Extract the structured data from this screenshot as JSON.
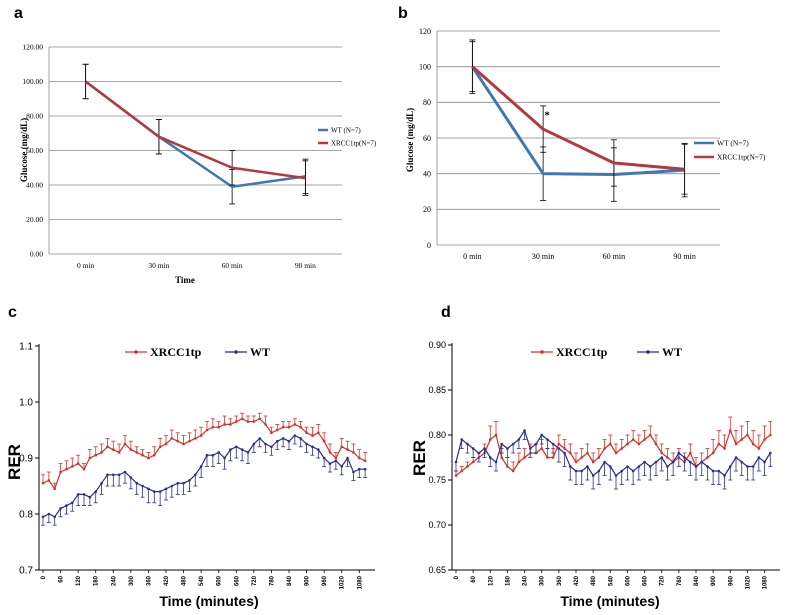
{
  "chart_data": [
    {
      "panel": "a",
      "type": "line",
      "categories": [
        "0 min",
        "30 min",
        "60 min",
        "90 min"
      ],
      "series": [
        {
          "name": "WT (N=7)",
          "color": "#3d78b5",
          "values": [
            100,
            68,
            39,
            45
          ],
          "errors": [
            10,
            10,
            10,
            10
          ]
        },
        {
          "name": "XRCC1tp(N=7)",
          "color": "#b23a3e",
          "values": [
            100,
            68,
            50,
            44
          ],
          "errors": [
            10,
            10,
            10,
            10
          ]
        }
      ],
      "xlabel": "Time",
      "ylabel": "Glucose (mg/dL)",
      "ylim": [
        0,
        120
      ],
      "yticks": [
        "0.00",
        "20.00",
        "40.00",
        "60.00",
        "80.00",
        "100.00",
        "120.00"
      ],
      "annotations": []
    },
    {
      "panel": "b",
      "type": "line",
      "categories": [
        "0 min",
        "30 min",
        "60 min",
        "90 min"
      ],
      "series": [
        {
          "name": "WT (N=7)",
          "color": "#3d78b5",
          "values": [
            100,
            40,
            39.5,
            42
          ],
          "errors": [
            15,
            15,
            15,
            15
          ]
        },
        {
          "name": "XRCC1tp(N=7)",
          "color": "#b23a3e",
          "values": [
            100,
            65,
            46,
            42.5
          ],
          "errors": [
            14,
            13,
            13,
            14
          ]
        }
      ],
      "xlabel": "",
      "ylabel": "Glucose (mg/dL)",
      "ylim": [
        0,
        120
      ],
      "yticks": [
        "0",
        "20",
        "40",
        "60",
        "80",
        "100",
        "120"
      ],
      "annotations": [
        {
          "text": "*",
          "category": "30 min",
          "value": 71
        }
      ]
    },
    {
      "panel": "c",
      "type": "line",
      "x": [
        0,
        20,
        40,
        60,
        80,
        100,
        120,
        140,
        160,
        180,
        200,
        220,
        240,
        260,
        280,
        300,
        320,
        340,
        360,
        380,
        400,
        420,
        440,
        460,
        480,
        500,
        520,
        540,
        560,
        580,
        600,
        620,
        640,
        660,
        680,
        700,
        720,
        740,
        760,
        780,
        800,
        820,
        840,
        860,
        880,
        900,
        920,
        940,
        960,
        980,
        1000,
        1020,
        1040,
        1060,
        1080,
        1100
      ],
      "series": [
        {
          "name": "XRCC1tp",
          "color": "#d8302a",
          "values": [
            0.855,
            0.86,
            0.845,
            0.875,
            0.88,
            0.885,
            0.89,
            0.88,
            0.9,
            0.905,
            0.91,
            0.92,
            0.915,
            0.91,
            0.925,
            0.915,
            0.91,
            0.905,
            0.9,
            0.905,
            0.92,
            0.925,
            0.935,
            0.93,
            0.925,
            0.93,
            0.935,
            0.94,
            0.95,
            0.955,
            0.955,
            0.96,
            0.96,
            0.965,
            0.97,
            0.965,
            0.965,
            0.97,
            0.96,
            0.945,
            0.95,
            0.955,
            0.955,
            0.96,
            0.955,
            0.945,
            0.94,
            0.945,
            0.93,
            0.91,
            0.9,
            0.92,
            0.915,
            0.91,
            0.9,
            0.895
          ],
          "errors": [
            0.015,
            0.015,
            0.01,
            0.015,
            0.015,
            0.015,
            0.015,
            0.01,
            0.015,
            0.015,
            0.015,
            0.015,
            0.015,
            0.015,
            0.015,
            0.015,
            0.01,
            0.01,
            0.01,
            0.015,
            0.015,
            0.015,
            0.015,
            0.015,
            0.015,
            0.015,
            0.015,
            0.015,
            0.015,
            0.015,
            0.01,
            0.015,
            0.01,
            0.01,
            0.01,
            0.01,
            0.01,
            0.01,
            0.015,
            0.01,
            0.01,
            0.01,
            0.01,
            0.01,
            0.01,
            0.01,
            0.015,
            0.015,
            0.015,
            0.015,
            0.01,
            0.015,
            0.015,
            0.015,
            0.015,
            0.015
          ]
        },
        {
          "name": "WT",
          "color": "#2c2f8a",
          "values": [
            0.795,
            0.8,
            0.795,
            0.81,
            0.815,
            0.82,
            0.835,
            0.835,
            0.83,
            0.84,
            0.855,
            0.87,
            0.87,
            0.87,
            0.875,
            0.865,
            0.855,
            0.85,
            0.845,
            0.84,
            0.84,
            0.845,
            0.85,
            0.855,
            0.855,
            0.86,
            0.87,
            0.885,
            0.905,
            0.905,
            0.91,
            0.9,
            0.915,
            0.92,
            0.915,
            0.91,
            0.925,
            0.935,
            0.925,
            0.92,
            0.93,
            0.935,
            0.93,
            0.94,
            0.935,
            0.925,
            0.92,
            0.915,
            0.9,
            0.89,
            0.895,
            0.885,
            0.9,
            0.875,
            0.88,
            0.88
          ],
          "errors": [
            0.015,
            0.015,
            0.015,
            0.015,
            0.015,
            0.015,
            0.02,
            0.02,
            0.015,
            0.02,
            0.02,
            0.02,
            0.02,
            0.02,
            0.02,
            0.02,
            0.02,
            0.02,
            0.025,
            0.02,
            0.025,
            0.02,
            0.02,
            0.02,
            0.02,
            0.02,
            0.02,
            0.02,
            0.02,
            0.02,
            0.02,
            0.02,
            0.02,
            0.02,
            0.02,
            0.02,
            0.015,
            0.015,
            0.015,
            0.015,
            0.015,
            0.015,
            0.015,
            0.015,
            0.015,
            0.015,
            0.015,
            0.015,
            0.015,
            0.015,
            0.015,
            0.015,
            0.015,
            0.015,
            0.015,
            0.015
          ]
        }
      ],
      "xlabel": "Time (minutes)",
      "ylabel": "RER",
      "ylim": [
        0.7,
        1.1
      ],
      "yticks": [
        "0.7",
        "0.8",
        "0.9",
        "1.0",
        "1.1"
      ],
      "xticks": [
        "0",
        "60",
        "120",
        "180",
        "240",
        "300",
        "360",
        "420",
        "480",
        "540",
        "600",
        "660",
        "720",
        "780",
        "840",
        "900",
        "960",
        "1020",
        "1080"
      ],
      "annotations": []
    },
    {
      "panel": "d",
      "type": "line",
      "x": [
        0,
        20,
        40,
        60,
        80,
        100,
        120,
        140,
        160,
        180,
        200,
        220,
        240,
        260,
        280,
        300,
        320,
        340,
        360,
        380,
        400,
        420,
        440,
        460,
        480,
        500,
        520,
        540,
        560,
        580,
        600,
        620,
        640,
        660,
        680,
        700,
        720,
        740,
        760,
        780,
        800,
        820,
        840,
        860,
        880,
        900,
        920,
        940,
        960,
        980,
        1000,
        1020,
        1040,
        1060,
        1080,
        1100
      ],
      "series": [
        {
          "name": "XRCC1tp",
          "color": "#d8302a",
          "values": [
            0.755,
            0.76,
            0.765,
            0.77,
            0.775,
            0.78,
            0.795,
            0.8,
            0.775,
            0.765,
            0.76,
            0.77,
            0.775,
            0.78,
            0.78,
            0.785,
            0.775,
            0.775,
            0.79,
            0.785,
            0.78,
            0.77,
            0.775,
            0.78,
            0.77,
            0.775,
            0.785,
            0.79,
            0.78,
            0.785,
            0.79,
            0.795,
            0.79,
            0.795,
            0.8,
            0.79,
            0.78,
            0.775,
            0.77,
            0.775,
            0.77,
            0.78,
            0.765,
            0.77,
            0.775,
            0.78,
            0.79,
            0.785,
            0.805,
            0.79,
            0.795,
            0.8,
            0.79,
            0.785,
            0.795,
            0.8
          ],
          "errors": [
            0.005,
            0.005,
            0.005,
            0.005,
            0.005,
            0.01,
            0.015,
            0.015,
            0.01,
            0.01,
            0.01,
            0.01,
            0.01,
            0.01,
            0.01,
            0.01,
            0.01,
            0.01,
            0.01,
            0.01,
            0.01,
            0.01,
            0.01,
            0.01,
            0.01,
            0.01,
            0.01,
            0.01,
            0.01,
            0.01,
            0.01,
            0.01,
            0.01,
            0.01,
            0.01,
            0.01,
            0.01,
            0.01,
            0.01,
            0.01,
            0.01,
            0.01,
            0.01,
            0.01,
            0.01,
            0.015,
            0.015,
            0.015,
            0.015,
            0.015,
            0.015,
            0.015,
            0.015,
            0.015,
            0.015,
            0.015
          ]
        },
        {
          "name": "WT",
          "color": "#2c2f8a",
          "values": [
            0.77,
            0.795,
            0.79,
            0.785,
            0.78,
            0.785,
            0.775,
            0.77,
            0.79,
            0.785,
            0.79,
            0.795,
            0.805,
            0.785,
            0.79,
            0.8,
            0.795,
            0.79,
            0.785,
            0.78,
            0.765,
            0.76,
            0.76,
            0.765,
            0.755,
            0.76,
            0.77,
            0.765,
            0.755,
            0.76,
            0.765,
            0.76,
            0.765,
            0.77,
            0.765,
            0.77,
            0.775,
            0.765,
            0.77,
            0.78,
            0.775,
            0.77,
            0.765,
            0.77,
            0.765,
            0.76,
            0.76,
            0.755,
            0.765,
            0.775,
            0.77,
            0.765,
            0.765,
            0.775,
            0.77,
            0.78
          ],
          "errors": [
            0.01,
            0.01,
            0.01,
            0.01,
            0.01,
            0.01,
            0.01,
            0.01,
            0.01,
            0.01,
            0.01,
            0.01,
            0.01,
            0.01,
            0.01,
            0.01,
            0.01,
            0.01,
            0.015,
            0.015,
            0.015,
            0.015,
            0.015,
            0.015,
            0.015,
            0.015,
            0.015,
            0.015,
            0.015,
            0.015,
            0.015,
            0.015,
            0.015,
            0.015,
            0.015,
            0.015,
            0.015,
            0.015,
            0.015,
            0.015,
            0.015,
            0.015,
            0.015,
            0.015,
            0.015,
            0.015,
            0.015,
            0.015,
            0.015,
            0.015,
            0.015,
            0.015,
            0.015,
            0.015,
            0.015,
            0.015
          ]
        }
      ],
      "xlabel": "Time (minutes)",
      "ylabel": "RER",
      "ylim": [
        0.65,
        0.9
      ],
      "yticks": [
        "0.65",
        "0.70",
        "0.75",
        "0.80",
        "0.85",
        "0.90"
      ],
      "xticks": [
        "0",
        "60",
        "120",
        "180",
        "240",
        "300",
        "360",
        "420",
        "480",
        "540",
        "600",
        "660",
        "720",
        "780",
        "840",
        "900",
        "960",
        "1020",
        "1080"
      ],
      "annotations": []
    }
  ]
}
